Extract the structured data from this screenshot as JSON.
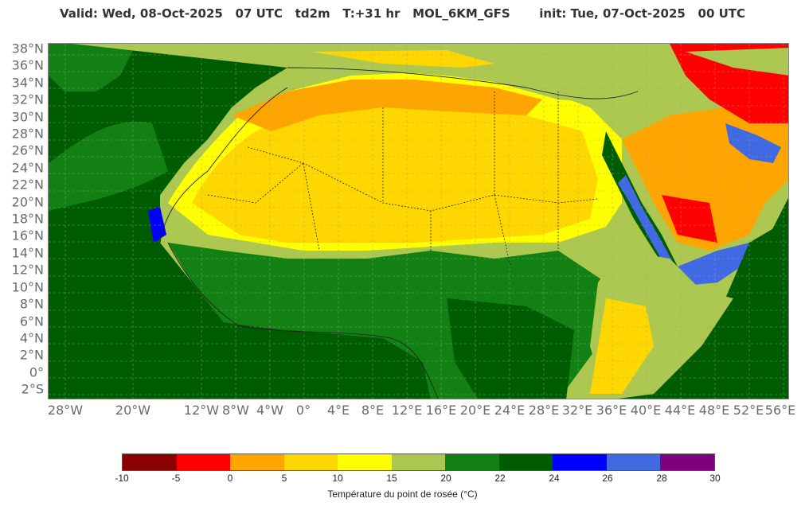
{
  "title": "Valid: Wed, 08-Oct-2025   07 UTC   td2m   T:+31 hr   MOL_6KM_GFS       init: Tue, 07-Oct-2025   00 UTC",
  "y_axis_labels": [
    "38°N",
    "36°N",
    "34°N",
    "32°N",
    "30°N",
    "28°N",
    "26°N",
    "24°N",
    "22°N",
    "20°N",
    "18°N",
    "16°N",
    "14°N",
    "12°N",
    "10°N",
    "8°N",
    "6°N",
    "4°N",
    "2°N",
    "0°",
    "2°S"
  ],
  "x_axis_labels": [
    "28°W",
    "20°W",
    "12°W",
    "8°W",
    "4°W",
    "0°",
    "4°E",
    "8°E",
    "12°E",
    "16°E",
    "20°E",
    "24°E",
    "28°E",
    "32°E",
    "36°E",
    "40°E",
    "44°E",
    "48°E",
    "52°E",
    "56°E"
  ],
  "colorbar": {
    "colors": [
      "#8b0000",
      "#ff0000",
      "#ffa500",
      "#ffd700",
      "#ffff00",
      "#adc850",
      "#128012",
      "#005c00",
      "#0000ff",
      "#4169e1",
      "#800080"
    ],
    "ticks": [
      "-10",
      "-5",
      "0",
      "5",
      "10",
      "15",
      "20",
      "22",
      "24",
      "26",
      "28",
      "30"
    ],
    "label": "Température du point de rosée (°C)"
  },
  "map_colors": {
    "ocean": "#005c00",
    "coast": "#128012",
    "sahel": "#adc850",
    "sahara_yellow": "#ffff00",
    "sahara_gold": "#ffd700",
    "dry_orange": "#ffa500",
    "very_dry_red": "#ff0000",
    "humid_royal": "#4169e1",
    "humid_blue": "#0000ff"
  }
}
